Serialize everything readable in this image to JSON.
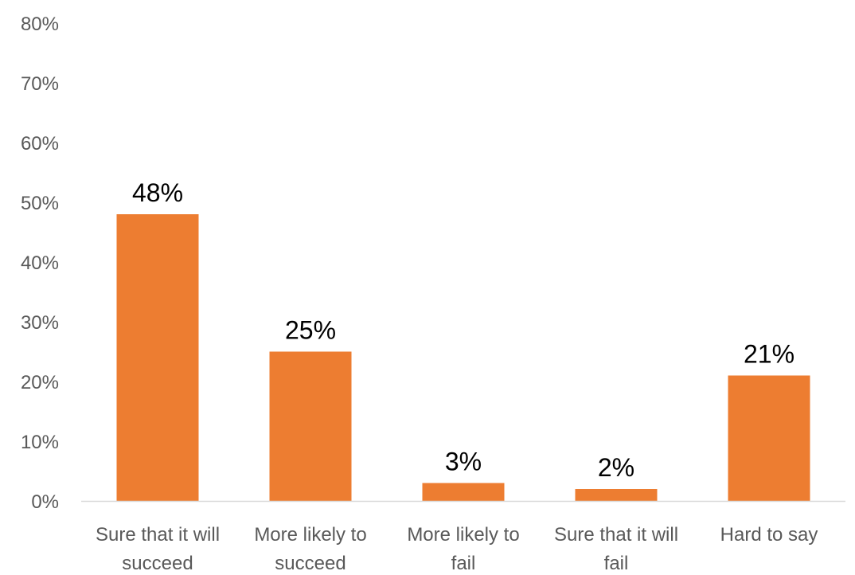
{
  "chart_data": {
    "type": "bar",
    "categories": [
      [
        "Sure that it will",
        "succeed"
      ],
      [
        "More likely to",
        "succeed"
      ],
      [
        "More likely to",
        "fail"
      ],
      [
        "Sure that it will",
        "fail"
      ],
      [
        "Hard to say"
      ]
    ],
    "values": [
      48,
      25,
      3,
      2,
      21
    ],
    "data_labels": [
      "48%",
      "25%",
      "3%",
      "2%",
      "21%"
    ],
    "ylim": [
      0,
      80
    ],
    "yticks": [
      0,
      10,
      20,
      30,
      40,
      50,
      60,
      70,
      80
    ],
    "ytick_labels": [
      "0%",
      "10%",
      "20%",
      "30%",
      "40%",
      "50%",
      "60%",
      "70%",
      "80%"
    ],
    "grid": false,
    "legend": "none",
    "title": "",
    "xlabel": "",
    "ylabel": "",
    "colors": {
      "bar": "#ED7D31",
      "axis": "#D9D9D9"
    }
  }
}
